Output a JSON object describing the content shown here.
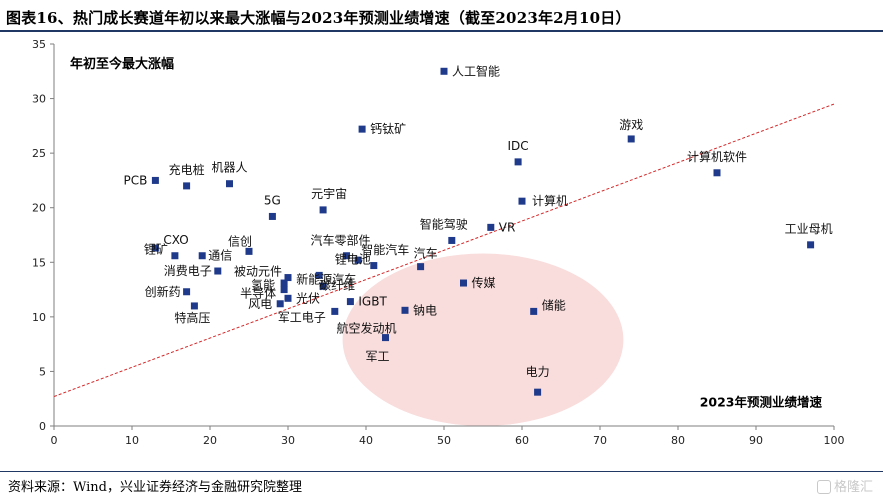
{
  "title": "图表16、热门成长赛道年初以来最大涨幅与2023年预测业绩增速（截至2023年2月10日）",
  "source": "资料来源：Wind，兴业证券经济与金融研究院整理",
  "watermark": "格隆汇",
  "colors": {
    "point": "#1f3a8a",
    "trend": "#d62728",
    "ellipse": "#f9dcdc",
    "rule": "#1f3864"
  },
  "chart_data": {
    "type": "scatter",
    "ylabel": "年初至今最大涨幅",
    "xlabel": "2023年预测业绩增速",
    "xlim": [
      0,
      100
    ],
    "ylim": [
      0,
      35
    ],
    "xticks": [
      0,
      10,
      20,
      30,
      40,
      50,
      60,
      70,
      80,
      90,
      100
    ],
    "yticks": [
      0,
      5,
      10,
      15,
      20,
      25,
      30,
      35
    ],
    "trendline": {
      "style": "dashed",
      "from": [
        0,
        2.7
      ],
      "to": [
        100,
        29.5
      ]
    },
    "highlight_ellipse": {
      "cx": 55,
      "cy": 7.9,
      "rx": 18,
      "ry": 7.9
    },
    "points": [
      {
        "name": "人工智能",
        "x": 50,
        "y": 32.5
      },
      {
        "name": "钙钛矿",
        "x": 39.5,
        "y": 27.2
      },
      {
        "name": "游戏",
        "x": 74,
        "y": 26.3
      },
      {
        "name": "IDC",
        "x": 59.5,
        "y": 24.2
      },
      {
        "name": "计算机软件",
        "x": 85,
        "y": 23.2
      },
      {
        "name": "PCB",
        "x": 13,
        "y": 22.5
      },
      {
        "name": "充电桩",
        "x": 17,
        "y": 22
      },
      {
        "name": "机器人",
        "x": 22.5,
        "y": 22.2
      },
      {
        "name": "计算机",
        "x": 60,
        "y": 20.6
      },
      {
        "name": "元宇宙",
        "x": 34.5,
        "y": 19.8
      },
      {
        "name": "5G",
        "x": 28,
        "y": 19.2
      },
      {
        "name": "VR",
        "x": 56,
        "y": 18.2
      },
      {
        "name": "工业母机",
        "x": 97,
        "y": 16.6
      },
      {
        "name": "智能驾驶",
        "x": 51,
        "y": 17
      },
      {
        "name": "CXO",
        "x": 13,
        "y": 16.3
      },
      {
        "name": "信创",
        "x": 25,
        "y": 16
      },
      {
        "name": "汽车零部件",
        "x": 37.5,
        "y": 15.6
      },
      {
        "name": "锂矿",
        "x": 15.5,
        "y": 15.6
      },
      {
        "name": "通信",
        "x": 19,
        "y": 15.6
      },
      {
        "name": "智能汽车",
        "x": 39,
        "y": 15.2
      },
      {
        "name": "汽车",
        "x": 47,
        "y": 14.6
      },
      {
        "name": "锂电池",
        "x": 41,
        "y": 14.7
      },
      {
        "name": "消费电子",
        "x": 21,
        "y": 14.2
      },
      {
        "name": "被动元件",
        "x": 30,
        "y": 13.6
      },
      {
        "name": "新能源汽车",
        "x": 34,
        "y": 13.8
      },
      {
        "name": "氢能",
        "x": 29.5,
        "y": 13.1
      },
      {
        "name": "传媒",
        "x": 52.5,
        "y": 13.1
      },
      {
        "name": "碳纤维",
        "x": 34.5,
        "y": 12.8
      },
      {
        "name": "半导体",
        "x": 29.5,
        "y": 12.5
      },
      {
        "name": "创新药",
        "x": 17,
        "y": 12.3
      },
      {
        "name": "光伏",
        "x": 30,
        "y": 11.7
      },
      {
        "name": "IGBT",
        "x": 38,
        "y": 11.4
      },
      {
        "name": "风电",
        "x": 29,
        "y": 11.2
      },
      {
        "name": "特高压",
        "x": 18,
        "y": 11
      },
      {
        "name": "储能",
        "x": 61.5,
        "y": 10.5
      },
      {
        "name": "军工电子",
        "x": 36,
        "y": 10.5
      },
      {
        "name": "钠电",
        "x": 45,
        "y": 10.6
      },
      {
        "name": "航空发动机",
        "x": 42.5,
        "y": 8.1
      },
      {
        "name": "军工",
        "x": 42.5,
        "y": 8.1
      },
      {
        "name": "电力",
        "x": 62,
        "y": 3.1
      }
    ]
  }
}
